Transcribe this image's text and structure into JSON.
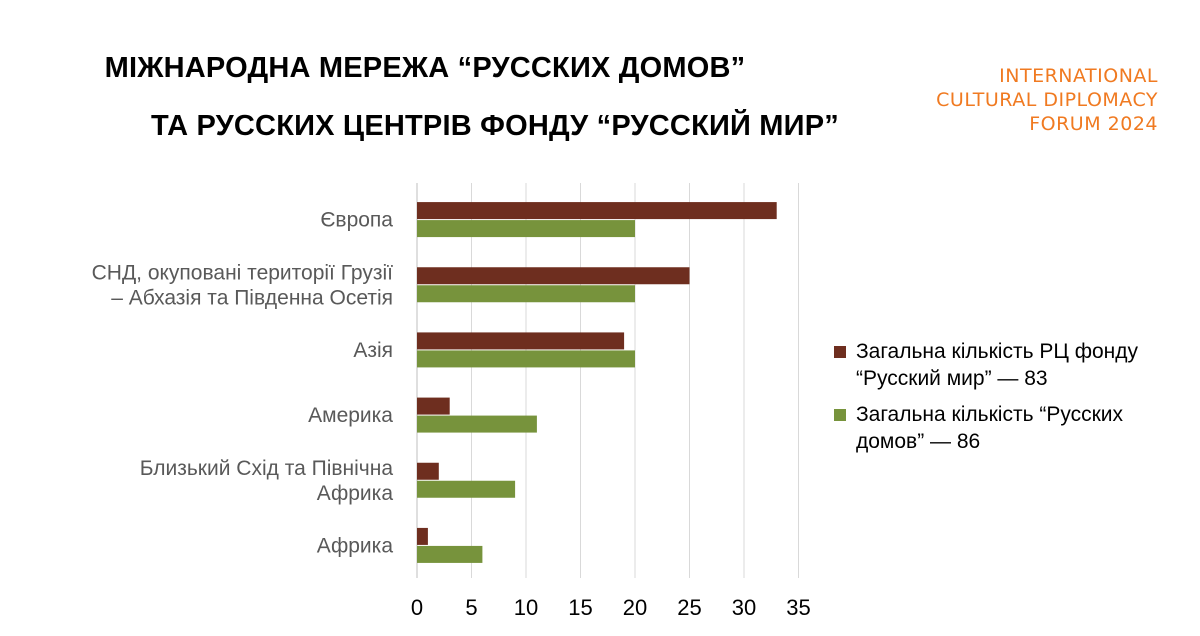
{
  "header": {
    "title_line1": "МІЖНАРОДНА МЕРЕЖА “РУССКИХ ДОМОВ”",
    "title_line2": "ТА РУССКИХ ЦЕНТРІВ ФОНДУ “РУССКИЙ МИР”"
  },
  "brand": {
    "line1": "INTERNATIONAL",
    "line2": "CULTURAL DIPLOMACY",
    "line3": "FORUM 2024",
    "color": "#F07A21"
  },
  "chart_data": {
    "type": "bar",
    "orientation": "horizontal",
    "categories": [
      [
        "Європа"
      ],
      [
        "СНД, окуповані території Грузії",
        "–  Абхазія та Південна Осетія"
      ],
      [
        "Азія"
      ],
      [
        "Америка"
      ],
      [
        "Близький Схід та Північна",
        "Африка"
      ],
      [
        "Африка"
      ]
    ],
    "series": [
      {
        "name_lines": [
          "Загальна кількість РЦ фонду",
          "“Русский мир” — 83"
        ],
        "color": "#6E2E1F",
        "values": [
          33,
          25,
          19,
          3,
          2,
          1
        ]
      },
      {
        "name_lines": [
          "Загальна кількість “Русских",
          "домов” — 86"
        ],
        "color": "#77933C",
        "values": [
          20,
          20,
          20,
          11,
          9,
          6
        ]
      }
    ],
    "xlim": [
      0,
      35
    ],
    "xticks": [
      "0",
      "5",
      "10",
      "15",
      "20",
      "25",
      "30",
      "35"
    ],
    "grid": true,
    "legend": "right"
  }
}
